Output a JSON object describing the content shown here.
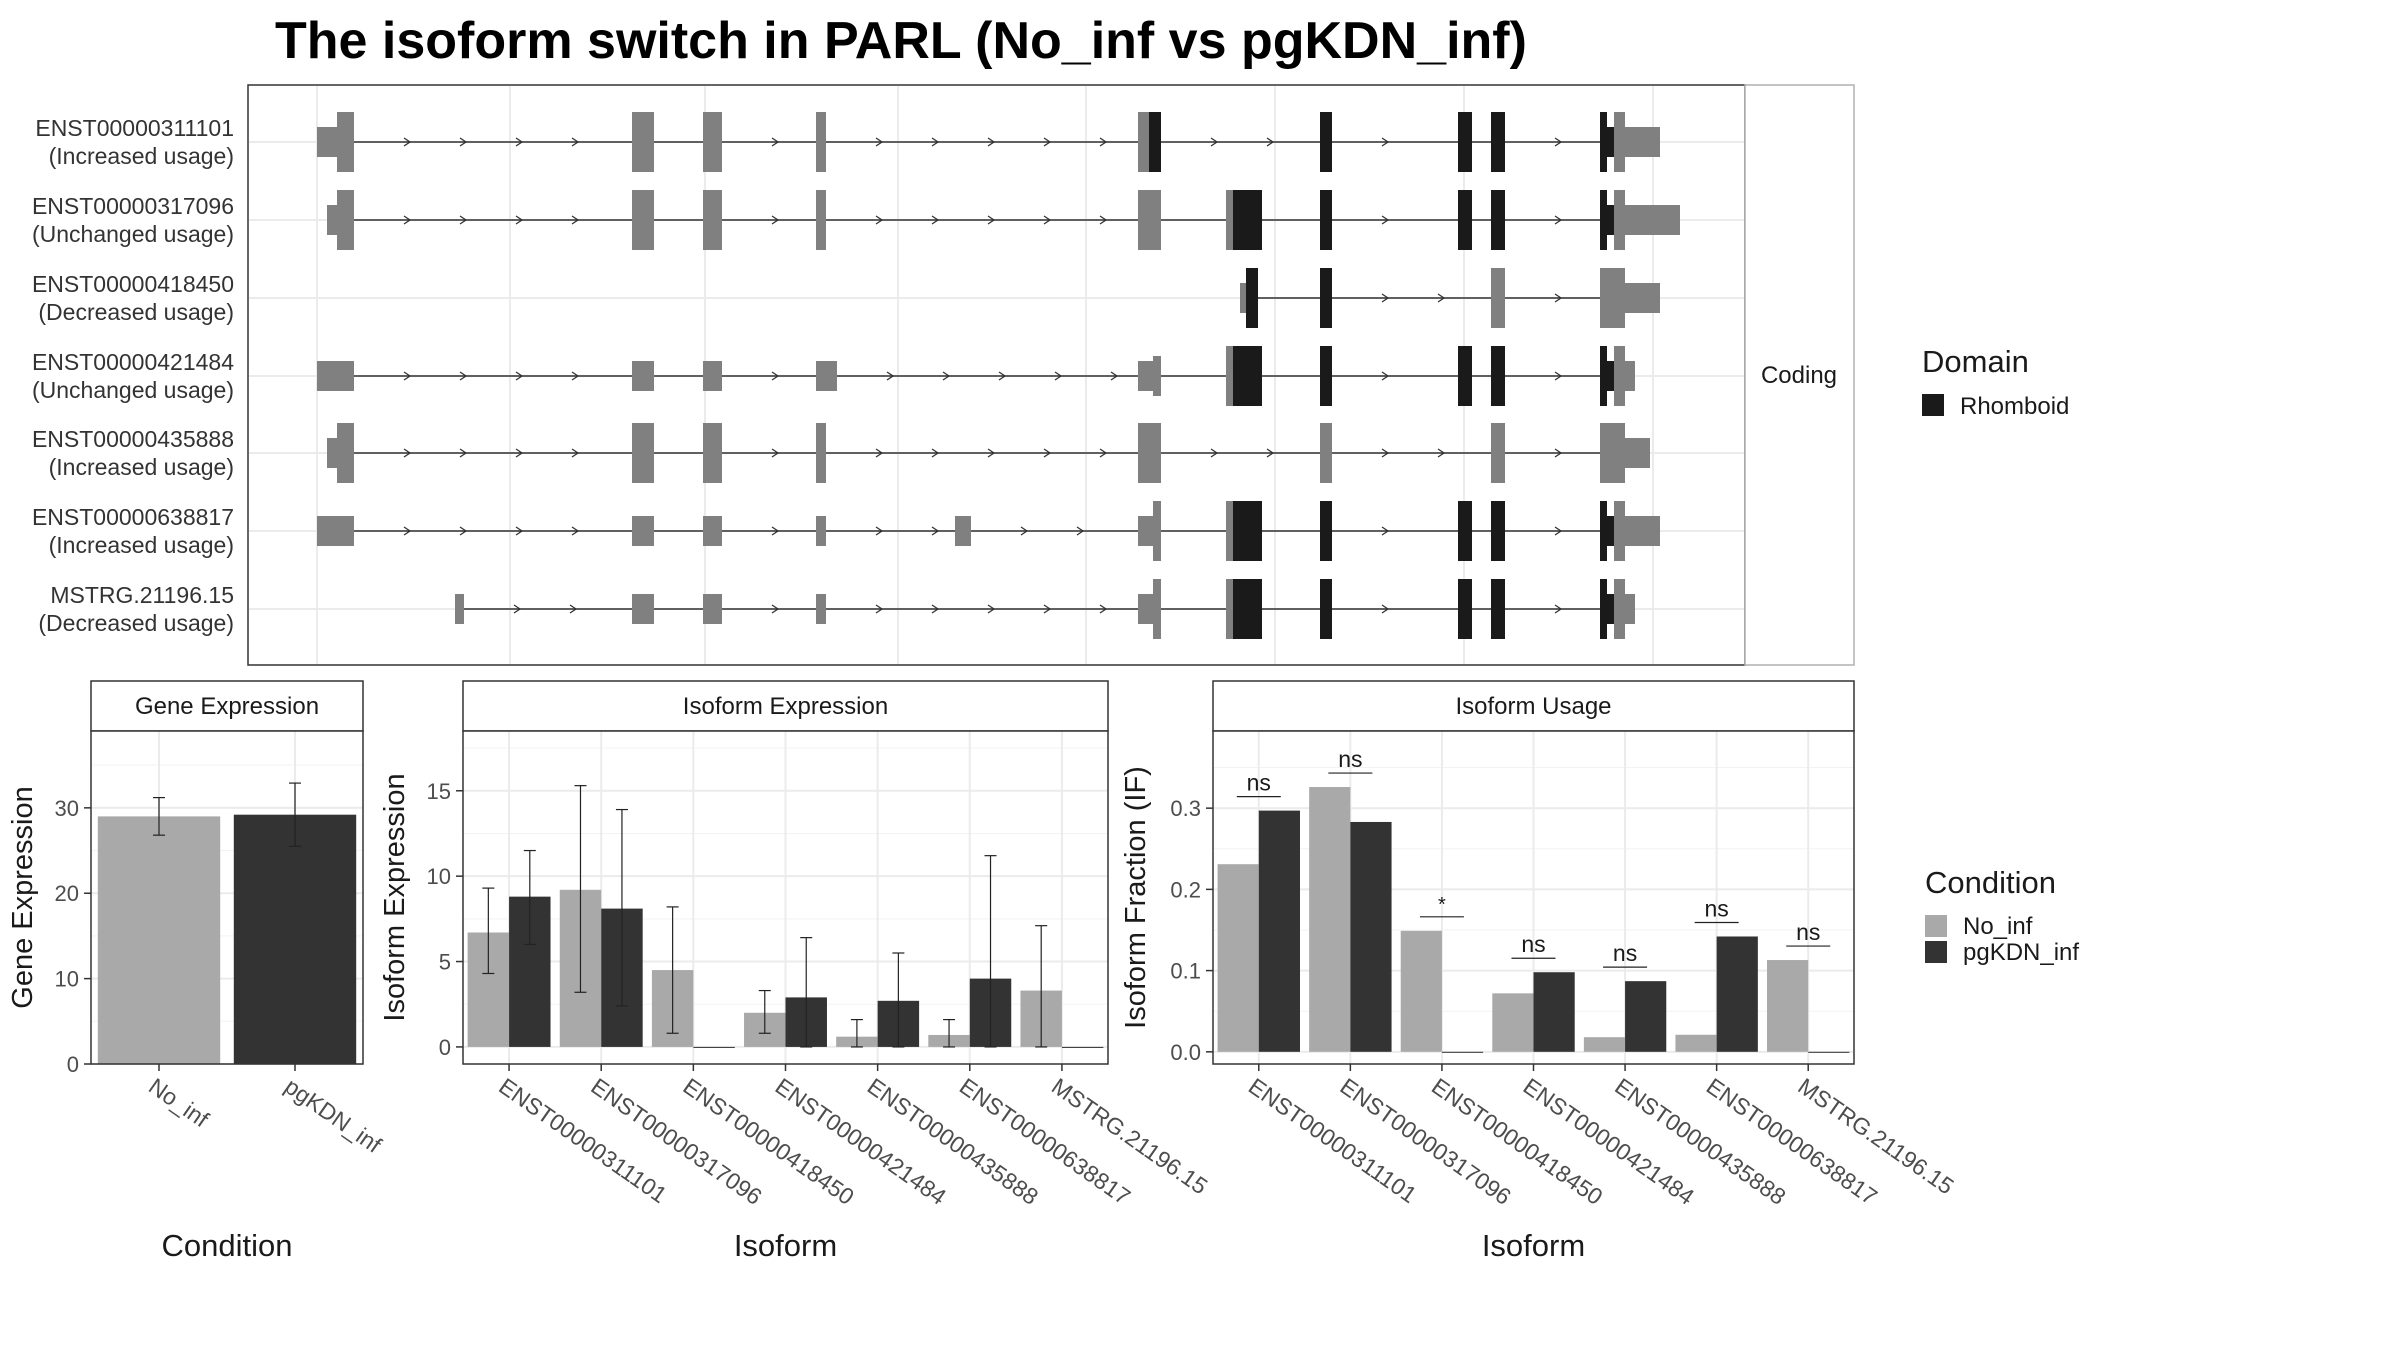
{
  "title": "The isoform switch in PARL (No_inf vs pgKDN_inf)",
  "structure_panel": {
    "strip_label": "Coding",
    "transcripts": [
      {
        "id": "ENST00000311101",
        "usage": "(Increased usage)"
      },
      {
        "id": "ENST00000317096",
        "usage": "(Unchanged usage)"
      },
      {
        "id": "ENST00000418450",
        "usage": "(Decreased usage)"
      },
      {
        "id": "ENST00000421484",
        "usage": "(Unchanged usage)"
      },
      {
        "id": "ENST00000435888",
        "usage": "(Increased usage)"
      },
      {
        "id": "ENST00000638817",
        "usage": "(Increased usage)"
      },
      {
        "id": "MSTRG.21196.15",
        "usage": "(Decreased usage)"
      }
    ]
  },
  "domain_legend": {
    "title": "Domain",
    "items": [
      "Rhomboid"
    ],
    "colors": [
      "#1a1a1a"
    ]
  },
  "condition_legend": {
    "title": "Condition",
    "items": [
      "No_inf",
      "pgKDN_inf"
    ],
    "colors": [
      "#a9a9a9",
      "#333333"
    ]
  },
  "chart_data": [
    {
      "type": "bar",
      "strip": "Gene Expression",
      "title": "",
      "xlabel": "Condition",
      "ylabel": "Gene Expression",
      "categories": [
        "No_inf",
        "pgKDN_inf"
      ],
      "values": [
        29.0,
        29.2
      ],
      "error_low": [
        26.8,
        25.5
      ],
      "error_high": [
        31.2,
        32.9
      ],
      "ylim": [
        0,
        39
      ],
      "yticks": [
        0,
        10,
        20,
        30
      ],
      "grid": true
    },
    {
      "type": "bar",
      "strip": "Isoform Expression",
      "title": "",
      "xlabel": "Isoform",
      "ylabel": "Isoform Expression",
      "categories": [
        "ENST00000311101",
        "ENST00000317096",
        "ENST00000418450",
        "ENST00000421484",
        "ENST00000435888",
        "ENST00000638817",
        "MSTRG.21196.15"
      ],
      "series": [
        {
          "name": "No_inf",
          "values": [
            6.7,
            9.2,
            4.5,
            2.0,
            0.6,
            0.7,
            3.3
          ],
          "error_low": [
            4.3,
            3.2,
            0.8,
            0.8,
            0.0,
            0.0,
            0.0
          ],
          "error_high": [
            9.3,
            15.3,
            8.2,
            3.3,
            1.6,
            1.6,
            7.1
          ]
        },
        {
          "name": "pgKDN_inf",
          "values": [
            8.8,
            8.1,
            0.0,
            2.9,
            2.7,
            4.0,
            0.0
          ],
          "error_low": [
            6.0,
            2.4,
            null,
            0.0,
            0.0,
            0.0,
            null
          ],
          "error_high": [
            11.5,
            13.9,
            null,
            6.4,
            5.5,
            11.2,
            null
          ]
        }
      ],
      "ylim": [
        -1,
        18.5
      ],
      "yticks": [
        0,
        5,
        10,
        15
      ],
      "grid": true
    },
    {
      "type": "bar",
      "strip": "Isoform Usage",
      "title": "",
      "xlabel": "Isoform",
      "ylabel": "Isoform Fraction (IF)",
      "categories": [
        "ENST00000311101",
        "ENST00000317096",
        "ENST00000418450",
        "ENST00000421484",
        "ENST00000435888",
        "ENST00000638817",
        "MSTRG.21196.15"
      ],
      "series": [
        {
          "name": "No_inf",
          "values": [
            0.231,
            0.326,
            0.149,
            0.072,
            0.018,
            0.021,
            0.113
          ]
        },
        {
          "name": "pgKDN_inf",
          "values": [
            0.297,
            0.283,
            0.0,
            0.098,
            0.087,
            0.142,
            0.0
          ]
        }
      ],
      "significance": [
        "ns",
        "ns",
        "*",
        "ns",
        "ns",
        "ns",
        "ns"
      ],
      "ylim": [
        -0.015,
        0.395
      ],
      "yticks": [
        0.0,
        0.1,
        0.2,
        0.3
      ],
      "ytick_labels": [
        "0.0",
        "0.1",
        "0.2",
        "0.3"
      ],
      "grid": true
    }
  ]
}
